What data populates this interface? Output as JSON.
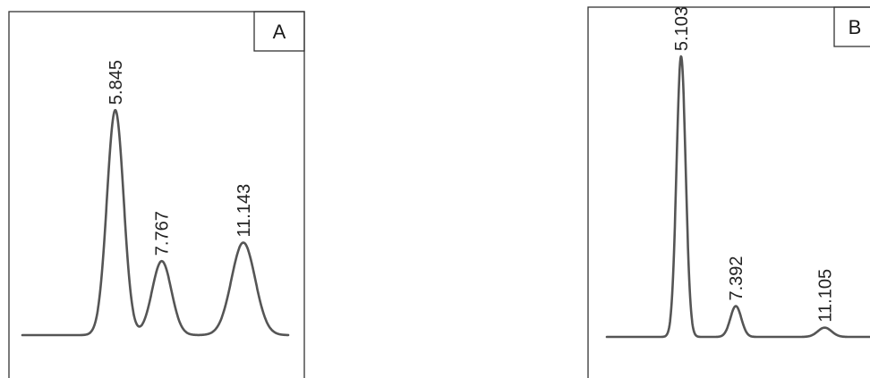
{
  "chart_data": [
    {
      "type": "line",
      "panel_label": "A",
      "peaks": [
        {
          "label": "5.845",
          "x": 5.845,
          "height": 0.73
        },
        {
          "label": "7.767",
          "x": 7.767,
          "height": 0.24
        },
        {
          "label": "11.143",
          "x": 11.143,
          "height": 0.3
        }
      ],
      "xlim": [
        2.0,
        13.0
      ]
    },
    {
      "type": "line",
      "panel_label": "B",
      "peaks": [
        {
          "label": "5.103",
          "x": 5.103,
          "height": 0.91
        },
        {
          "label": "7.392",
          "x": 7.392,
          "height": 0.1
        },
        {
          "label": "11.105",
          "x": 11.105,
          "height": 0.03
        }
      ],
      "xlim": [
        2.0,
        13.0
      ]
    }
  ],
  "colors": {
    "trace": "#555555",
    "frame": "#333333",
    "text": "#222222"
  }
}
